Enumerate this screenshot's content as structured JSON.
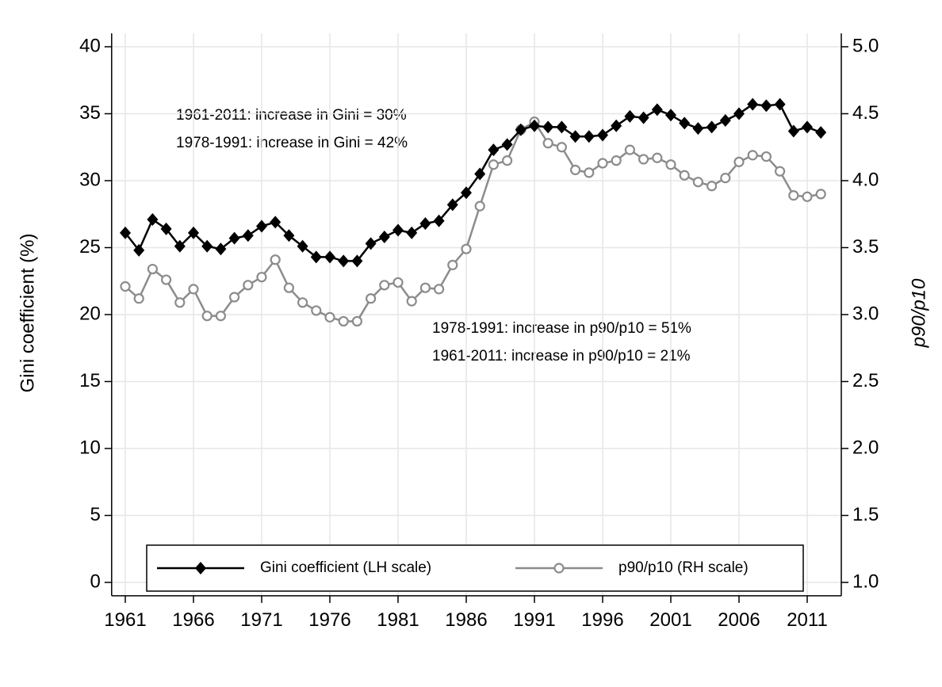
{
  "chart_data": {
    "type": "line",
    "x": [
      1961,
      1962,
      1963,
      1964,
      1965,
      1966,
      1967,
      1968,
      1969,
      1970,
      1971,
      1972,
      1973,
      1974,
      1975,
      1976,
      1977,
      1978,
      1979,
      1980,
      1981,
      1982,
      1983,
      1984,
      1985,
      1986,
      1987,
      1988,
      1989,
      1990,
      1991,
      1992,
      1993,
      1994,
      1995,
      1996,
      1997,
      1998,
      1999,
      2000,
      2001,
      2002,
      2003,
      2004,
      2005,
      2006,
      2007,
      2008,
      2009,
      2010,
      2011,
      2012
    ],
    "series": [
      {
        "name": "Gini coefficient (LH scale)",
        "color": "#000000",
        "marker": "diamond",
        "values": [
          26.1,
          24.8,
          27.1,
          26.4,
          25.1,
          26.1,
          25.1,
          24.9,
          25.7,
          25.9,
          26.6,
          26.9,
          25.9,
          25.1,
          24.3,
          24.3,
          24.0,
          24.0,
          25.3,
          25.8,
          26.3,
          26.1,
          26.8,
          27.0,
          28.2,
          29.1,
          30.5,
          32.3,
          32.7,
          33.8,
          34.1,
          34.0,
          34.0,
          33.3,
          33.3,
          33.4,
          34.1,
          34.8,
          34.7,
          35.3,
          34.9,
          34.3,
          33.9,
          34.0,
          34.5,
          35.0,
          35.7,
          35.6,
          35.7,
          33.7,
          34.0,
          33.6
        ]
      },
      {
        "name": "p90/p10 (RH scale)",
        "color": "#8c8c8c",
        "marker": "circle",
        "axis": "y2",
        "values": [
          3.21,
          3.12,
          3.34,
          3.26,
          3.09,
          3.19,
          2.99,
          2.99,
          3.13,
          3.22,
          3.28,
          3.41,
          3.2,
          3.09,
          3.03,
          2.98,
          2.95,
          2.95,
          3.12,
          3.22,
          3.24,
          3.1,
          3.2,
          3.19,
          3.37,
          3.49,
          3.81,
          4.12,
          4.15,
          4.38,
          4.44,
          4.28,
          4.25,
          4.08,
          4.06,
          4.13,
          4.15,
          4.23,
          4.16,
          4.17,
          4.12,
          4.04,
          3.99,
          3.96,
          4.02,
          4.14,
          4.19,
          4.18,
          4.07,
          3.89,
          3.88,
          3.9
        ]
      }
    ],
    "y_label": "Gini coefficient (%)",
    "y2_label": "p90/p10",
    "annotations": [
      "1961-2011: increase in Gini = 30%",
      "1978-1991: increase in Gini = 42%",
      "1978-1991: increase in p90/p10 = 51%",
      "1961-2011: increase in p90/p10 = 21%"
    ],
    "xlim": [
      1960,
      2013.5
    ],
    "xticks": [
      1961,
      1966,
      1971,
      1976,
      1981,
      1986,
      1991,
      1996,
      2001,
      2006,
      2011
    ],
    "ylim": [
      -1,
      41
    ],
    "yticks": [
      0,
      5,
      10,
      15,
      20,
      25,
      30,
      35,
      40
    ],
    "y2lim": [
      0.9,
      5.1
    ],
    "y2ticks": [
      {
        "value": 1,
        "label": "1.0"
      },
      1.5,
      {
        "value": 2,
        "label": "2.0"
      },
      2.5,
      {
        "value": 3,
        "label": "3.0"
      },
      3.5,
      {
        "value": 4,
        "label": "4.0"
      },
      4.5,
      {
        "value": 5,
        "label": "5.0"
      }
    ],
    "grid": true,
    "legend": "bottom"
  }
}
